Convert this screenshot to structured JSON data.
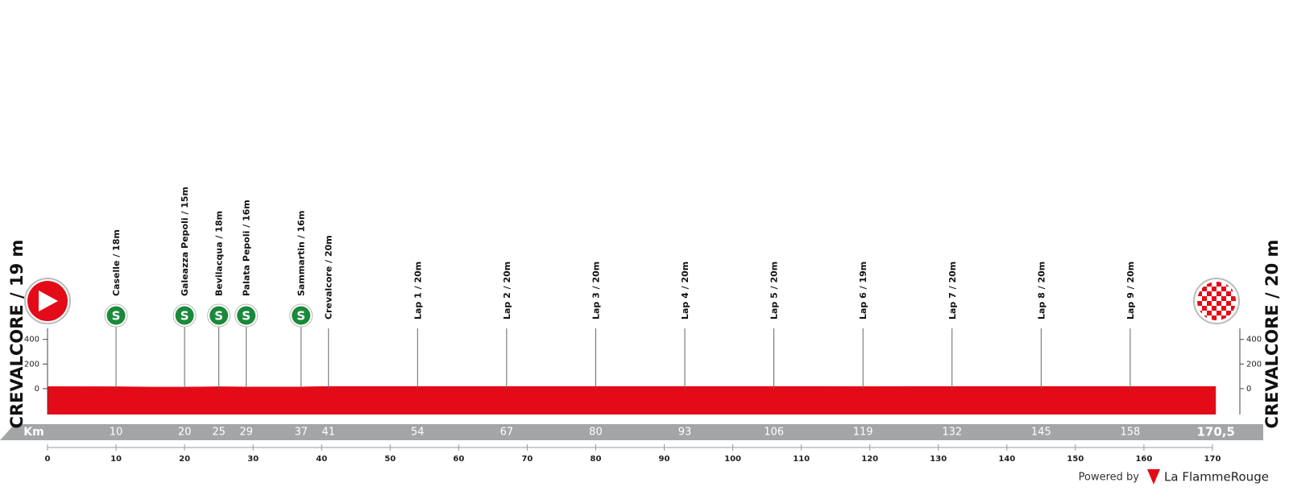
{
  "chart_data": {
    "type": "profile",
    "start_label": "CREVALCORE / 19 m",
    "finish_label": "CREVALCORE / 20 m",
    "x_label": "Km",
    "xlim": [
      0,
      174
    ],
    "xticks": [
      0,
      10,
      20,
      30,
      40,
      50,
      60,
      70,
      80,
      90,
      100,
      110,
      120,
      130,
      140,
      150,
      160,
      170
    ],
    "ylim": [
      -210,
      1850
    ],
    "yticks": [
      0,
      200,
      400
    ],
    "color": "#e30b17",
    "profile": {
      "x": [
        0,
        10,
        15,
        20,
        25,
        29,
        37,
        41,
        54,
        67,
        80,
        93,
        106,
        119,
        132,
        145,
        158,
        170.5
      ],
      "values": [
        19,
        18,
        15,
        15,
        18,
        16,
        16,
        20,
        20,
        20,
        20,
        20,
        20,
        19,
        20,
        20,
        20,
        20
      ]
    },
    "sprint_symbol": "S",
    "waypoints": [
      {
        "km": 10,
        "label": "Caselle / 18m",
        "sprint": true
      },
      {
        "km": 20,
        "label": "Galeazza Pepoli / 15m",
        "sprint": true
      },
      {
        "km": 25,
        "label": "Bevilacqua / 18m",
        "sprint": true
      },
      {
        "km": 29,
        "label": "Palata Pepoli / 16m",
        "sprint": true
      },
      {
        "km": 37,
        "label": "Sammartin / 16m",
        "sprint": true
      },
      {
        "km": 41,
        "label": "Crevalcore / 20m",
        "sprint": false
      },
      {
        "km": 54,
        "label": "Lap 1 / 20m",
        "sprint": false
      },
      {
        "km": 67,
        "label": "Lap 2 / 20m",
        "sprint": false
      },
      {
        "km": 80,
        "label": "Lap 3 / 20m",
        "sprint": false
      },
      {
        "km": 93,
        "label": "Lap 4 / 20m",
        "sprint": false
      },
      {
        "km": 106,
        "label": "Lap 5 / 20m",
        "sprint": false
      },
      {
        "km": 119,
        "label": "Lap 6 / 19m",
        "sprint": false
      },
      {
        "km": 132,
        "label": "Lap 7 / 20m",
        "sprint": false
      },
      {
        "km": 145,
        "label": "Lap 8 / 20m",
        "sprint": false
      },
      {
        "km": 158,
        "label": "Lap 9 / 20m",
        "sprint": false
      }
    ],
    "km_markers": [
      10,
      20,
      25,
      29,
      37,
      41,
      54,
      67,
      80,
      93,
      106,
      119,
      132,
      145,
      158,
      {
        "value": 170.5,
        "label": "170,5"
      }
    ],
    "credit_prefix": "Powered by",
    "credit_brand": "La FlammeRouge"
  }
}
